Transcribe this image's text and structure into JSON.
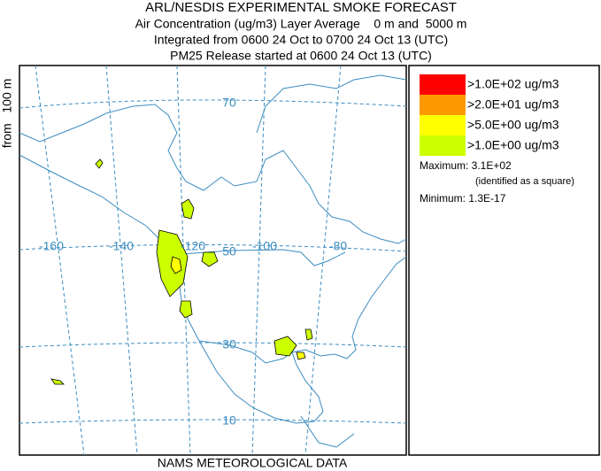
{
  "header": {
    "title": "ARL/NESDIS EXPERIMENTAL SMOKE FORECAST",
    "lines": [
      "Air Concentration (ug/m3) Layer Average    0 m and  5000 m",
      "Integrated from 0600 24 Oct to 0700 24 Oct 13 (UTC)",
      "PM25 Release started at 0600 24 Oct 13 (UTC)"
    ]
  },
  "side_label": "from   100 m",
  "footer": "NAMS METEOROLOGICAL DATA",
  "map": {
    "lat_labels": [
      "70",
      "50",
      "30",
      "10"
    ],
    "lon_labels": [
      "-160",
      "-140",
      "-120",
      "-100",
      "-80"
    ]
  },
  "legend": {
    "items": [
      {
        "label": ">1.0E+02 ug/m3",
        "color": "#ff0000"
      },
      {
        "label": ">2.0E+01 ug/m3",
        "color": "#ff9900"
      },
      {
        "label": ">5.0E+00 ug/m3",
        "color": "#ffff00"
      },
      {
        "label": ">1.0E+00 ug/m3",
        "color": "#ccff00"
      }
    ],
    "maximum": "Maximum: 3.1E+02",
    "maximum_note": "(identified as a square)",
    "minimum": "Minimum: 1.3E-17"
  }
}
